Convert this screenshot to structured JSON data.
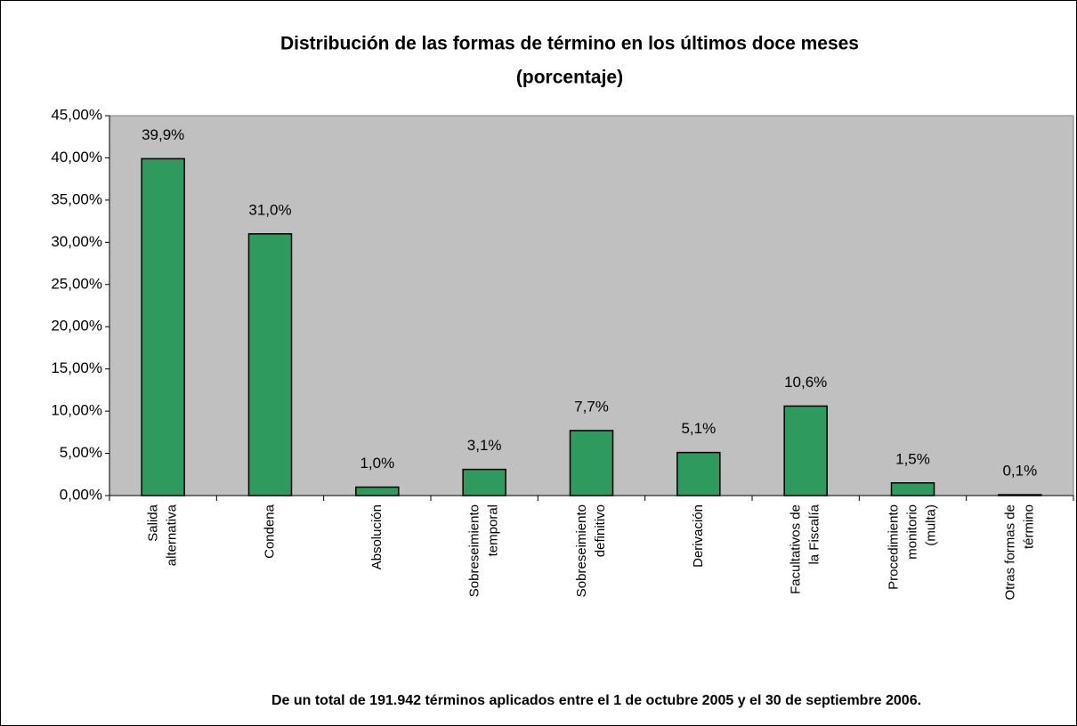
{
  "chart_data": {
    "type": "bar",
    "title": "Distribución de las formas de término en los últimos doce meses",
    "subtitle": "(porcentaje)",
    "categories": [
      [
        "Salida",
        "alternativa"
      ],
      [
        "Condena"
      ],
      [
        "Absolución"
      ],
      [
        "Sobreseimiento",
        "temporal"
      ],
      [
        "Sobreseimiento",
        "definitivo"
      ],
      [
        "Derivación"
      ],
      [
        "Facultativos de",
        "la Fiscalía"
      ],
      [
        "Procedimiento",
        "monitorio",
        "(multa)"
      ],
      [
        "Otras formas de",
        "término"
      ]
    ],
    "values": [
      39.9,
      31.0,
      1.0,
      3.1,
      7.7,
      5.1,
      10.6,
      1.5,
      0.1
    ],
    "value_labels": [
      "39,9%",
      "31,0%",
      "1,0%",
      "3,1%",
      "7,7%",
      "5,1%",
      "10,6%",
      "1,5%",
      "0,1%"
    ],
    "color": "#2e9a5e",
    "plot_background": "#c0c0c0",
    "ylim": [
      0,
      45
    ],
    "yticks": [
      {
        "value": 0,
        "label": "0,00%"
      },
      {
        "value": 5,
        "label": "5,00%"
      },
      {
        "value": 10,
        "label": "10,00%"
      },
      {
        "value": 15,
        "label": "15,00%"
      },
      {
        "value": 20,
        "label": "20,00%"
      },
      {
        "value": 25,
        "label": "25,00%"
      },
      {
        "value": 30,
        "label": "30,00%"
      },
      {
        "value": 35,
        "label": "35,00%"
      },
      {
        "value": 40,
        "label": "40,00%"
      },
      {
        "value": 45,
        "label": "45,00%"
      }
    ],
    "grid": false,
    "footnote": "De un total de 191.942 términos aplicados entre el 1 de octubre 2005 y el 30 de septiembre 2006."
  }
}
